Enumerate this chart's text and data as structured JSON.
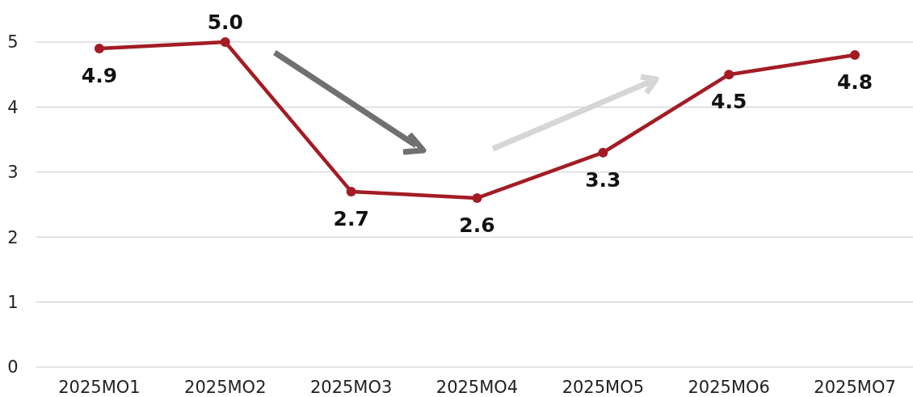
{
  "chart_data": {
    "type": "line",
    "categories": [
      "2025MO1",
      "2025MO2",
      "2025MO3",
      "2025MO4",
      "2025MO5",
      "2025MO6",
      "2025MO7"
    ],
    "series": [
      {
        "color": "#a31c24",
        "values": [
          4.9,
          5.0,
          2.7,
          2.6,
          3.3,
          4.5,
          4.8
        ],
        "value_labels": [
          "4.9",
          "5.0",
          "2.7",
          "2.6",
          "3.3",
          "4.5",
          "4.8"
        ]
      }
    ],
    "ylim": [
      0,
      5
    ],
    "yticks": [
      0,
      1,
      2,
      3,
      4,
      5
    ],
    "grid": "y",
    "marker": "circle",
    "line_style": "solid"
  }
}
